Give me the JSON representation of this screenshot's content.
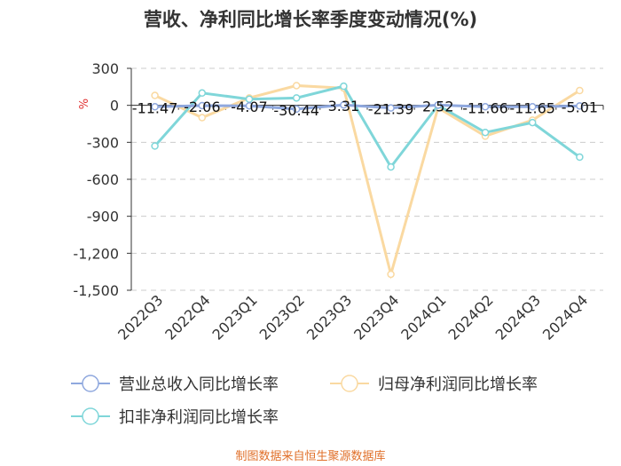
{
  "chart_data": {
    "type": "line",
    "title": "营收、净利同比增长率季度变动情况(%)",
    "unit": "%",
    "categories": [
      "2022Q3",
      "2022Q4",
      "2023Q1",
      "2023Q2",
      "2023Q3",
      "2023Q4",
      "2024Q1",
      "2024Q2",
      "2024Q3",
      "2024Q4"
    ],
    "ylim": [
      -1500,
      300
    ],
    "yticks": [
      300,
      0,
      -300,
      -600,
      -900,
      -1200,
      -1500
    ],
    "ytick_labels": [
      "300",
      "0",
      "-300",
      "-600",
      "-900",
      "-1,200",
      "-1,500"
    ],
    "grid": true,
    "legend_position": "bottom",
    "series": [
      {
        "name": "营业总收入同比增长率",
        "color": "#8fa8de",
        "values": [
          -11.47,
          -2.06,
          -4.07,
          -30.44,
          3.31,
          -21.39,
          2.52,
          -11.66,
          -11.65,
          -5.01
        ],
        "labels": [
          "-11.47",
          "-2.06",
          "-4.07",
          "-30.44",
          "3.31",
          "-21.39",
          "2.52",
          "-11.66",
          "-11.65",
          "-5.01"
        ]
      },
      {
        "name": "归母净利润同比增长率",
        "color": "#fad9a1",
        "values": [
          80,
          -100,
          60,
          160,
          140,
          -1370,
          -20,
          -250,
          -120,
          120
        ]
      },
      {
        "name": "扣非净利润同比增长率",
        "color": "#7fd6d9",
        "values": [
          -330,
          100,
          50,
          60,
          155,
          -500,
          0,
          -220,
          -140,
          -420
        ]
      }
    ]
  },
  "source_text": "制图数据来自恒生聚源数据库",
  "colors": {
    "axis_unit": "#e03030",
    "source": "#e0702a",
    "grid": "#cccccc"
  }
}
